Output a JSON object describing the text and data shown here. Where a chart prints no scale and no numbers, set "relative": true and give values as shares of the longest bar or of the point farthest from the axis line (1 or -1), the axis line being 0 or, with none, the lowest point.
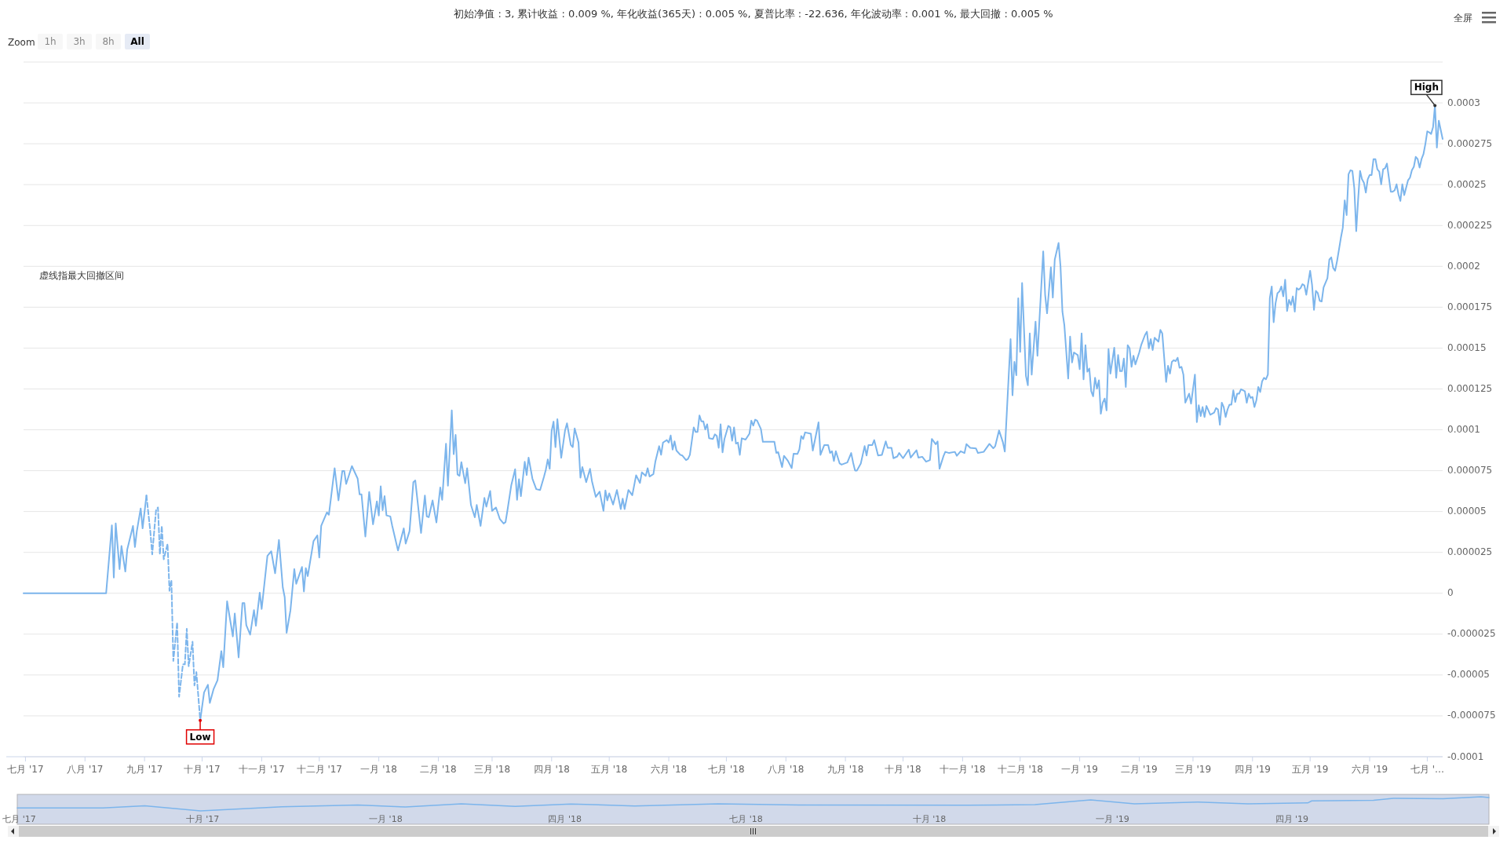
{
  "chart_data": [
    {
      "type": "line",
      "title": "初始净值 : 3, 累计收益 : 0.009 %, 年化收益(365天) : 0.005 %, 夏普比率 : -22.636, 年化波动率 : 0.001 %, 最大回撤 : 0.005 %",
      "annotations": [
        "虚线指最大回撤区间",
        "Zoom",
        "1h",
        "3h",
        "8h",
        "All",
        "全屏",
        {
          "text": "Low",
          "x": "2017-09-30",
          "y": -7.78e-05
        },
        {
          "text": "High",
          "x": "2019-07-05",
          "y": 0.0002984
        }
      ],
      "xlim": [
        "2017-06-30",
        "2019-07-09"
      ],
      "xticks": [
        {
          "value": "2017-07-01",
          "label": "七月 '17"
        },
        {
          "value": "2017-08-01",
          "label": "八月 '17"
        },
        {
          "value": "2017-09-01",
          "label": "九月 '17"
        },
        {
          "value": "2017-10-01",
          "label": "十月 '17"
        },
        {
          "value": "2017-11-01",
          "label": "十一月 '17"
        },
        {
          "value": "2017-12-01",
          "label": "十二月 '17"
        },
        {
          "value": "2018-01-01",
          "label": "一月 '18"
        },
        {
          "value": "2018-02-01",
          "label": "二月 '18"
        },
        {
          "value": "2018-03-01",
          "label": "三月 '18"
        },
        {
          "value": "2018-04-01",
          "label": "四月 '18"
        },
        {
          "value": "2018-05-01",
          "label": "五月 '18"
        },
        {
          "value": "2018-06-01",
          "label": "六月 '18"
        },
        {
          "value": "2018-07-01",
          "label": "七月 '18"
        },
        {
          "value": "2018-08-01",
          "label": "八月 '18"
        },
        {
          "value": "2018-09-01",
          "label": "九月 '18"
        },
        {
          "value": "2018-10-01",
          "label": "十月 '18"
        },
        {
          "value": "2018-11-01",
          "label": "十一月 '18"
        },
        {
          "value": "2018-12-01",
          "label": "十二月 '18"
        },
        {
          "value": "2019-01-01",
          "label": "一月 '19"
        },
        {
          "value": "2019-02-01",
          "label": "二月 '19"
        },
        {
          "value": "2019-03-01",
          "label": "三月 '19"
        },
        {
          "value": "2019-04-01",
          "label": "四月 '19"
        },
        {
          "value": "2019-05-01",
          "label": "五月 '19"
        },
        {
          "value": "2019-06-01",
          "label": "六月 '19"
        },
        {
          "value": "2019-07-01",
          "label": "七月 '…"
        }
      ],
      "ylim": [
        -0.0001,
        0.000325
      ],
      "yticks": [
        -0.0001,
        {
          "value": -7.5e-05,
          "label": "-0.000075"
        },
        {
          "value": -5e-05,
          "label": "-0.00005"
        },
        {
          "value": -2.5e-05,
          "label": "-0.000025"
        },
        0,
        {
          "value": 2.5e-05,
          "label": "0.000025"
        },
        {
          "value": 5e-05,
          "label": "0.00005"
        },
        {
          "value": 7.5e-05,
          "label": "0.000075"
        },
        0.0001,
        0.000125,
        0.00015,
        0.000175,
        0.0002,
        0.000225,
        0.00025,
        0.000275,
        0.0003,
        {
          "value": 0.000325,
          "label": null
        }
      ],
      "grid": "y",
      "series": [
        {
          "color": "#7cb5ec",
          "line_style": "solid",
          "x": [
            "2017-06-30",
            "2017-08-12",
            "2017-08-15",
            "2017-08-16",
            "2017-08-17",
            "2017-08-19",
            "2017-08-20",
            "2017-08-22",
            "2017-08-23",
            "2017-08-26",
            "2017-08-27",
            "2017-08-28",
            "2017-08-30",
            "2017-08-31",
            "2017-09-02"
          ],
          "values": [
            0,
            0,
            4.16e-05,
            9.6e-06,
            4.27e-05,
            1.48e-05,
            2.89e-05,
            1.33e-05,
            2.68e-05,
            4.12e-05,
            2.83e-05,
            3.8e-05,
            5.19e-05,
            3.97e-05,
            5.98e-05
          ]
        },
        {
          "color": "#7cb5ec",
          "line_style": "solid",
          "x": [
            "2017-09-30",
            "2017-10-02",
            "2017-10-04",
            "2017-10-05",
            "2017-10-07",
            "2017-10-09",
            "2017-10-11",
            "2017-10-12",
            "2017-10-14",
            "2017-10-17",
            "2017-10-18",
            "2017-10-20",
            "2017-10-22",
            "2017-10-23",
            "2017-10-24",
            "2017-10-26",
            "2017-10-28",
            "2017-10-29",
            "2017-10-31",
            "2017-11-01",
            "2017-11-04",
            "2017-11-06",
            "2017-11-08",
            "2017-11-10",
            "2017-11-12",
            "2017-11-13",
            "2017-11-14",
            "2017-11-16",
            "2017-11-18",
            "2017-11-19",
            "2017-11-22",
            "2017-11-23",
            "2017-11-24",
            "2017-11-25",
            "2017-11-28",
            "2017-11-30",
            "2017-12-01",
            "2017-12-02",
            "2017-12-05",
            "2017-12-06",
            "2017-12-09",
            "2017-12-11",
            "2017-12-13",
            "2017-12-14",
            "2017-12-15",
            "2017-12-18",
            "2017-12-21",
            "2017-12-22",
            "2017-12-23",
            "2017-12-25",
            "2017-12-27",
            "2017-12-29",
            "2017-12-31",
            "2018-01-01",
            "2018-01-02",
            "2018-01-03",
            "2018-01-04",
            "2018-01-05",
            "2018-01-07",
            "2018-01-08",
            "2018-01-11",
            "2018-01-14",
            "2018-01-15",
            "2018-01-17",
            "2018-01-19",
            "2018-01-20",
            "2018-01-23",
            "2018-01-25",
            "2018-01-26",
            "2018-01-27",
            "2018-01-29",
            "2018-01-31",
            "2018-02-02",
            "2018-02-03",
            "2018-02-05",
            "2018-02-06",
            "2018-02-08",
            "2018-02-09",
            "2018-02-10",
            "2018-02-11",
            "2018-02-12",
            "2018-02-13",
            "2018-02-15",
            "2018-02-16",
            "2018-02-18",
            "2018-02-20",
            "2018-02-21",
            "2018-02-23",
            "2018-02-25",
            "2018-02-26",
            "2018-02-28",
            "2018-03-01",
            "2018-03-03",
            "2018-03-05",
            "2018-03-07",
            "2018-03-08",
            "2018-03-09",
            "2018-03-11",
            "2018-03-13",
            "2018-03-14",
            "2018-03-15",
            "2018-03-16",
            "2018-03-18",
            "2018-03-19",
            "2018-03-20",
            "2018-03-22",
            "2018-03-24",
            "2018-03-26",
            "2018-03-28",
            "2018-03-29",
            "2018-03-30",
            "2018-03-31",
            "2018-04-01",
            "2018-04-02",
            "2018-04-03",
            "2018-04-04",
            "2018-04-06",
            "2018-04-08",
            "2018-04-09",
            "2018-04-11",
            "2018-04-12",
            "2018-04-13",
            "2018-04-15",
            "2018-04-16",
            "2018-04-17",
            "2018-04-19",
            "2018-04-21",
            "2018-04-22",
            "2018-04-24",
            "2018-04-26",
            "2018-04-28",
            "2018-04-29",
            "2018-04-30",
            "2018-05-01",
            "2018-05-03",
            "2018-05-05",
            "2018-05-07",
            "2018-05-08",
            "2018-05-09",
            "2018-05-11",
            "2018-05-13",
            "2018-05-15",
            "2018-05-17",
            "2018-05-18",
            "2018-05-20",
            "2018-05-21",
            "2018-05-22",
            "2018-05-24",
            "2018-05-25",
            "2018-05-27",
            "2018-05-28",
            "2018-05-29",
            "2018-05-31",
            "2018-06-01",
            "2018-06-02",
            "2018-06-03",
            "2018-06-04",
            "2018-06-05",
            "2018-06-07",
            "2018-06-08",
            "2018-06-10",
            "2018-06-11",
            "2018-06-12",
            "2018-06-14",
            "2018-06-15",
            "2018-06-16",
            "2018-06-17",
            "2018-06-18",
            "2018-06-19",
            "2018-06-20",
            "2018-06-21",
            "2018-06-22",
            "2018-06-24",
            "2018-06-25",
            "2018-06-26",
            "2018-06-27",
            "2018-06-28",
            "2018-06-29",
            "2018-06-30",
            "2018-07-02",
            "2018-07-03",
            "2018-07-04",
            "2018-07-05",
            "2018-07-06",
            "2018-07-07",
            "2018-07-08",
            "2018-07-09",
            "2018-07-11",
            "2018-07-13",
            "2018-07-14",
            "2018-07-15",
            "2018-07-16",
            "2018-07-17",
            "2018-07-19",
            "2018-07-20",
            "2018-07-26",
            "2018-07-27",
            "2018-07-28",
            "2018-07-30",
            "2018-07-31",
            "2018-08-02",
            "2018-08-04",
            "2018-08-05",
            "2018-08-07",
            "2018-08-08",
            "2018-08-09",
            "2018-08-10",
            "2018-08-11",
            "2018-08-14",
            "2018-08-15",
            "2018-08-18",
            "2018-08-19",
            "2018-08-21",
            "2018-08-23",
            "2018-08-24",
            "2018-08-25",
            "2018-08-26",
            "2018-08-27",
            "2018-08-29",
            "2018-08-30",
            "2018-09-02",
            "2018-09-04",
            "2018-09-05",
            "2018-09-06",
            "2018-09-07",
            "2018-09-09",
            "2018-09-11",
            "2018-09-12",
            "2018-09-13",
            "2018-09-15",
            "2018-09-16",
            "2018-09-18",
            "2018-09-20",
            "2018-09-22",
            "2018-09-23",
            "2018-09-25",
            "2018-09-26",
            "2018-09-28",
            "2018-09-29",
            "2018-10-01",
            "2018-10-04",
            "2018-10-05",
            "2018-10-08",
            "2018-10-09",
            "2018-10-11",
            "2018-10-13",
            "2018-10-15",
            "2018-10-16",
            "2018-10-18",
            "2018-10-19",
            "2018-10-20",
            "2018-10-22",
            "2018-10-23",
            "2018-10-25",
            "2018-10-28",
            "2018-10-29",
            "2018-10-31",
            "2018-11-02",
            "2018-11-03",
            "2018-11-05",
            "2018-11-08",
            "2018-11-09",
            "2018-11-12",
            "2018-11-15",
            "2018-11-17",
            "2018-11-18",
            "2018-11-20",
            "2018-11-22",
            "2018-11-23",
            "2018-11-26",
            "2018-11-27",
            "2018-11-28",
            "2018-11-29",
            "2018-11-30",
            "2018-12-01",
            "2018-12-02",
            "2018-12-04",
            "2018-12-05",
            "2018-12-06",
            "2018-12-07",
            "2018-12-09",
            "2018-12-10",
            "2018-12-13",
            "2018-12-14",
            "2018-12-15",
            "2018-12-17",
            "2018-12-18",
            "2018-12-19",
            "2018-12-21",
            "2018-12-22",
            "2018-12-23",
            "2018-12-24",
            "2018-12-26",
            "2018-12-27",
            "2018-12-28",
            "2018-12-29",
            "2018-12-31",
            "2019-01-01",
            "2019-01-02",
            "2019-01-03",
            "2019-01-04",
            "2019-01-05",
            "2019-01-06",
            "2019-01-07",
            "2019-01-08",
            "2019-01-09",
            "2019-01-10",
            "2019-01-11",
            "2019-01-12",
            "2019-01-13",
            "2019-01-14",
            "2019-01-15",
            "2019-01-16",
            "2019-01-17",
            "2019-01-19",
            "2019-01-20",
            "2019-01-21",
            "2019-01-22",
            "2019-01-23",
            "2019-01-24",
            "2019-01-25",
            "2019-01-26",
            "2019-01-27",
            "2019-01-28",
            "2019-01-29",
            "2019-01-30",
            "2019-02-01",
            "2019-02-02",
            "2019-02-04",
            "2019-02-05",
            "2019-02-06",
            "2019-02-07",
            "2019-02-08",
            "2019-02-09",
            "2019-02-11",
            "2019-02-12",
            "2019-02-13",
            "2019-02-15",
            "2019-02-16",
            "2019-02-17",
            "2019-02-18",
            "2019-02-19",
            "2019-02-20",
            "2019-02-21",
            "2019-02-22",
            "2019-02-23",
            "2019-02-24",
            "2019-02-25",
            "2019-02-27",
            "2019-02-28",
            "2019-03-02",
            "2019-03-03",
            "2019-03-04",
            "2019-03-05",
            "2019-03-06",
            "2019-03-07",
            "2019-03-08",
            "2019-03-10",
            "2019-03-12",
            "2019-03-13",
            "2019-03-14",
            "2019-03-15",
            "2019-03-16",
            "2019-03-17",
            "2019-03-18",
            "2019-03-19",
            "2019-03-20",
            "2019-03-21",
            "2019-03-22",
            "2019-03-23",
            "2019-03-24",
            "2019-03-25",
            "2019-03-26",
            "2019-03-28",
            "2019-03-29",
            "2019-03-30",
            "2019-03-31",
            "2019-04-01",
            "2019-04-02",
            "2019-04-03",
            "2019-04-04",
            "2019-04-05",
            "2019-04-06",
            "2019-04-07",
            "2019-04-08",
            "2019-04-09",
            "2019-04-10",
            "2019-04-11",
            "2019-04-12",
            "2019-04-13",
            "2019-04-14",
            "2019-04-15",
            "2019-04-16",
            "2019-04-17",
            "2019-04-18",
            "2019-04-19",
            "2019-04-20",
            "2019-04-21",
            "2019-04-22",
            "2019-04-23",
            "2019-04-24",
            "2019-04-25",
            "2019-04-26",
            "2019-04-27",
            "2019-04-28",
            "2019-04-29",
            "2019-05-01",
            "2019-05-02",
            "2019-05-03",
            "2019-05-04",
            "2019-05-05",
            "2019-05-06",
            "2019-05-07",
            "2019-05-08",
            "2019-05-10",
            "2019-05-11",
            "2019-05-12",
            "2019-05-13",
            "2019-05-14",
            "2019-05-15",
            "2019-05-16",
            "2019-05-17",
            "2019-05-18",
            "2019-05-19",
            "2019-05-20",
            "2019-05-21",
            "2019-05-22",
            "2019-05-23",
            "2019-05-24",
            "2019-05-25",
            "2019-05-26",
            "2019-05-27",
            "2019-05-28",
            "2019-05-29",
            "2019-05-30",
            "2019-05-31",
            "2019-06-01",
            "2019-06-02",
            "2019-06-03",
            "2019-06-04",
            "2019-06-05",
            "2019-06-06",
            "2019-06-07",
            "2019-06-08",
            "2019-06-09",
            "2019-06-10",
            "2019-06-12",
            "2019-06-13",
            "2019-06-14",
            "2019-06-15",
            "2019-06-16",
            "2019-06-17",
            "2019-06-18",
            "2019-06-19",
            "2019-06-21",
            "2019-06-22",
            "2019-06-23",
            "2019-06-24",
            "2019-06-25",
            "2019-06-26",
            "2019-06-27",
            "2019-06-28",
            "2019-06-29",
            "2019-06-30",
            "2019-07-01",
            "2019-07-02",
            "2019-07-03",
            "2019-07-04",
            "2019-07-05",
            "2019-07-06",
            "2019-07-07",
            "2019-07-09"
          ],
          "values": [
            -7.78e-05,
            -6.07e-05,
            -5.6e-05,
            -6.71e-05,
            -5.85e-05,
            -5.32e-05,
            -3.54e-05,
            -4.52e-05,
            -4.9e-06,
            -2.64e-05,
            -1.24e-05,
            -3.92e-05,
            -6e-06,
            -6e-06,
            -1.95e-05,
            -2.53e-05,
            -1.03e-05,
            -1.99e-05,
            4e-07,
            -9.6e-06,
            2.29e-05,
            2.57e-05,
            1.22e-05,
            3.26e-05,
            3.6e-06,
            -2.4e-06,
            -2.42e-05,
            -1.03e-05,
            1.48e-05,
            5.8e-06,
            1.61e-05,
            1.1e-06,
            1.54e-05,
            1.05e-05,
            3.19e-05,
            3.54e-05,
            2.19e-05,
            4.12e-05,
            4.95e-05,
            4.8e-05,
            7.65e-05,
            5.68e-05,
            7.48e-05,
            7.48e-05,
            6.69e-05,
            7.78e-05,
            7.01e-05,
            6.05e-05,
            6.05e-05,
            3.47e-05,
            6.2e-05,
            4.22e-05,
            5.62e-05,
            4.76e-05,
            6.54e-05,
            5.08e-05,
            5.94e-05,
            4.76e-05,
            4.7e-05,
            4.12e-05,
            2.62e-05,
            3.97e-05,
            3.04e-05,
            3.8e-05,
            6.8e-05,
            6.9e-05,
            3.69e-05,
            5.98e-05,
            4.7e-05,
            4.65e-05,
            5.68e-05,
            4.33e-05,
            6.47e-05,
            5.72e-05,
            9.15e-05,
            6.58e-05,
            0.0001119,
            8.51e-05,
            9.69e-05,
            7.27e-05,
            7.18e-05,
            8.02e-05,
            6.73e-05,
            7.65e-05,
            5.4e-05,
            4.65e-05,
            5.4e-05,
            4.12e-05,
            5.83e-05,
            5.3e-05,
            6.26e-05,
            5.04e-05,
            5.25e-05,
            4.55e-05,
            4.27e-05,
            4.35e-05,
            5.08e-05,
            6.62e-05,
            7.59e-05,
            5.72e-05,
            6.97e-05,
            5.94e-05,
            8.04e-05,
            7.23e-05,
            8.3e-05,
            7.01e-05,
            6.37e-05,
            6.32e-05,
            7.12e-05,
            7.57e-05,
            8.19e-05,
            7.61e-05,
            9.93e-05,
            0.000105,
            8.94e-05,
            0.0001065,
            8.29e-05,
            9.97e-05,
            0.000104,
            9.07e-05,
            8.94e-05,
            0.0001008,
            9.22e-05,
            7.07e-05,
            7.72e-05,
            6.8e-05,
            7.61e-05,
            6.86e-05,
            5.9e-05,
            6.22e-05,
            5.04e-05,
            6.29e-05,
            5.68e-05,
            6.11e-05,
            5.43e-05,
            6.32e-05,
            5.15e-05,
            5.79e-05,
            5.15e-05,
            6.32e-05,
            6e-05,
            7.22e-05,
            6.75e-05,
            7.4e-05,
            7.18e-05,
            7.65e-05,
            7.14e-05,
            7.29e-05,
            8.04e-05,
            9e-05,
            8.47e-05,
            9.22e-05,
            9.37e-05,
            9.22e-05,
            9.65e-05,
            8.79e-05,
            9.29e-05,
            8.73e-05,
            8.47e-05,
            8.43e-05,
            8.15e-05,
            8.22e-05,
            8.47e-05,
            0.0001015,
            9.87e-05,
            9.87e-05,
            0.0001088,
            0.0001052,
            0.0001052,
            0.0001002,
            0.0001034,
            9.48e-05,
            9.44e-05,
            9.72e-05,
            9.63e-05,
            8.9e-05,
            0.0001034,
            8.62e-05,
            9.44e-05,
            0.0001024,
            0.0001015,
            9.33e-05,
            0.0001015,
            9.16e-05,
            9.22e-05,
            8.47e-05,
            9.48e-05,
            9.4e-05,
            9.76e-05,
            0.0001056,
            0.0001026,
            0.0001062,
            0.0001056,
            0.0001004,
            9.27e-05,
            9.27e-05,
            8.59e-05,
            8.63e-05,
            7.72e-05,
            8.41e-05,
            8.11e-05,
            7.66e-05,
            8.54e-05,
            8.52e-05,
            8.8e-05,
            9.62e-05,
            9.44e-05,
            9.84e-05,
            9.76e-05,
            8.73e-05,
            0.0001046,
            8.47e-05,
            9.07e-05,
            9.07e-05,
            8.58e-05,
            8.69e-05,
            8.09e-05,
            8.69e-05,
            7.94e-05,
            7.87e-05,
            8e-05,
            8.58e-05,
            8e-05,
            7.51e-05,
            7.51e-05,
            7.94e-05,
            9e-05,
            8.43e-05,
            9.07e-05,
            9.07e-05,
            9.37e-05,
            8.43e-05,
            8.47e-05,
            9.29e-05,
            8.9e-05,
            8.9e-05,
            8.26e-05,
            8.37e-05,
            8.58e-05,
            8.26e-05,
            8.79e-05,
            8.3e-05,
            8.75e-05,
            8.3e-05,
            8.35e-05,
            8.05e-05,
            8.15e-05,
            9.44e-05,
            9.12e-05,
            9.29e-05,
            7.62e-05,
            8.37e-05,
            8.65e-05,
            8.58e-05,
            8.65e-05,
            8.41e-05,
            8.69e-05,
            8.58e-05,
            9.12e-05,
            8.9e-05,
            8.86e-05,
            8.58e-05,
            8.65e-05,
            9.14e-05,
            8.87e-05,
            9e-05,
            9.96e-05,
            9.24e-05,
            8.67e-05,
            0.0001555,
            0.0001211,
            0.0001416,
            0.0001334,
            0.0001805,
            0.0001477,
            0.0001898,
            0.000133,
            0.0001273,
            0.000159,
            0.0001338,
            0.0001662,
            0.0001453,
            0.0002092,
            0.0001826,
            0.0001713,
            0.0001994,
            0.0001809,
            0.0002041,
            0.0002143,
            0.0002,
            0.0001723,
            0.0001641,
            0.0001314,
            0.000157,
            0.0001412,
            0.0001473,
            0.0001457,
            0.0001371,
            0.000159,
            0.0001309,
            0.0001518,
            0.0001355,
            0.0001375,
            0.0001236,
            0.0001205,
            0.0001318,
            0.0001252,
            0.0001303,
            0.0001098,
            0.0001166,
            0.0001191,
            0.0001119,
            0.0001494,
            0.0001344,
            0.0001502,
            0.0001318,
            0.0001457,
            0.0001359,
            0.0001359,
            0.0001436,
            0.0001262,
            0.0001518,
            0.0001498,
            0.0001385,
            0.0001453,
            0.00014,
            0.0001473,
            0.0001518,
            0.000158,
            0.00016,
            0.0001498,
            0.0001555,
            0.0001488,
            0.0001563,
            0.0001539,
            0.0001611,
            0.000159,
            0.0001293,
            0.0001391,
            0.0001344,
            0.0001416,
            0.0001426,
            0.000142,
            0.0001441,
            0.0001379,
            0.0001385,
            0.0001338,
            0.0001166,
            0.0001221,
            0.000116,
            0.0001338,
            0.0001047,
            0.000115,
            0.0001084,
            0.0001139,
            0.0001078,
            0.0001146,
            0.0001092,
            0.0001105,
            0.0001133,
            0.0001125,
            0.0001031,
            0.0001166,
            0.0001139,
            0.0001078,
            0.0001125,
            0.0001154,
            0.0001154,
            0.0001242,
            0.000117,
            0.0001221,
            0.0001221,
            0.0001248,
            0.0001236,
            0.0001166,
            0.0001221,
            0.0001195,
            0.0001201,
            0.0001139,
            0.000118,
            0.0001262,
            0.0001231,
            0.0001297,
            0.0001318,
            0.0001309,
            0.0001338,
            0.0001805,
            0.0001877,
            0.0001658,
            0.0001775,
            0.0001836,
            0.0001846,
            0.0001877,
            0.0001816,
            0.0001918,
            0.0001727,
            0.0001795,
            0.0001764,
            0.0001816,
            0.0001723,
            0.0001867,
            0.0001857,
            0.0001867,
            0.0001891,
            0.0001883,
            0.0001826,
            0.0001973,
            0.0001887,
            0.0001734,
            0.000185,
            0.0001836,
            0.0001789,
            0.0001785,
            0.0001871,
            0.0001928,
            0.0002041,
            0.0002055,
            0.000199,
            0.0001973,
            0.0002031,
            0.0002102,
            0.0002174,
            0.0002236,
            0.0002404,
            0.0002314,
            0.0002564,
            0.0002588,
            0.0002584,
            0.0002478,
            0.0002215,
            0.000241,
            0.0002584,
            0.0002533,
            0.0002512,
            0.0002451,
            0.0002533,
            0.0002559,
            0.0002559,
            0.0002656,
            0.0002656,
            0.0002594,
            0.000258,
            0.0002502,
            0.0002594,
            0.00026,
            0.0002629,
            0.0002457,
            0.0002457,
            0.0002465,
            0.0002502,
            0.0002441,
            0.00024,
            0.0002502,
            0.0002436,
            0.0002527,
            0.0002543,
            0.0002588,
            0.0002609,
            0.000267,
            0.0002656,
            0.0002604,
            0.0002656,
            0.0002686,
            0.0002748,
            0.0002826,
            0.000282,
            0.000281,
            0.0002851,
            0.0002984,
            0.0002727,
            0.0002891,
            0.0002779
          ]
        },
        {
          "color": "#7cb5ec",
          "line_style": "dashed",
          "x": [
            "2017-09-02",
            "2017-09-04",
            "2017-09-05",
            "2017-09-07",
            "2017-09-08",
            "2017-09-09",
            "2017-09-10",
            "2017-09-11",
            "2017-09-13",
            "2017-09-14",
            "2017-09-15",
            "2017-09-16",
            "2017-09-18",
            "2017-09-19",
            "2017-09-21",
            "2017-09-22",
            "2017-09-23",
            "2017-09-24",
            "2017-09-26",
            "2017-09-27",
            "2017-09-28",
            "2017-09-29",
            "2017-09-30"
          ],
          "values": [
            5.98e-05,
            3.8e-05,
            2.38e-05,
            5.08e-05,
            5.25e-05,
            2.38e-05,
            4.12e-05,
            2.08e-05,
            3.02e-05,
            1.5e-06,
            7.9e-06,
            -4.14e-05,
            -1.78e-05,
            -6.33e-05,
            -4.35e-05,
            -4.35e-05,
            -2.17e-05,
            -4.46e-05,
            -2.96e-05,
            -5.64e-05,
            -4.82e-05,
            -6.28e-05,
            -7.78e-05
          ]
        }
      ]
    },
    {
      "type": "line",
      "relative": true,
      "color": "#7cb5ec",
      "tick_labels": "x",
      "xlim": [
        "2017-06-30",
        "2019-07-09"
      ],
      "xticks": [
        {
          "value": "2017-07-01",
          "label": "七月 '17"
        },
        {
          "value": "2017-10-01",
          "label": "十月 '17"
        },
        {
          "value": "2018-01-01",
          "label": "一月 '18"
        },
        {
          "value": "2018-04-01",
          "label": "四月 '18"
        },
        {
          "value": "2018-07-01",
          "label": "七月 '18"
        },
        {
          "value": "2018-10-01",
          "label": "十月 '18"
        },
        {
          "value": "2019-01-01",
          "label": "一月 '19"
        },
        {
          "value": "2019-04-01",
          "label": "四月 '19"
        }
      ],
      "x": [
        "2017-06-30",
        "2017-08-12",
        "2017-09-02",
        "2017-09-30",
        "2017-11-10",
        "2017-12-18",
        "2018-01-11",
        "2018-02-08",
        "2018-03-07",
        "2018-04-04",
        "2018-05-06",
        "2018-06-17",
        "2018-07-30",
        "2018-10-20",
        "2018-11-23",
        "2018-12-21",
        "2019-01-12",
        "2019-02-13",
        "2019-03-10",
        "2019-04-09",
        "2019-04-11",
        "2019-05-12",
        "2019-05-22",
        "2019-06-16",
        "2019-07-05",
        "2019-07-09"
      ],
      "values": [
        0.207,
        0.207,
        0.366,
        0,
        0.295,
        0.414,
        0.276,
        0.504,
        0.321,
        0.491,
        0.345,
        0.497,
        0.412,
        0.409,
        0.438,
        0.776,
        0.499,
        0.629,
        0.497,
        0.563,
        0.707,
        0.754,
        0.895,
        0.856,
        1,
        0.946
      ]
    }
  ]
}
